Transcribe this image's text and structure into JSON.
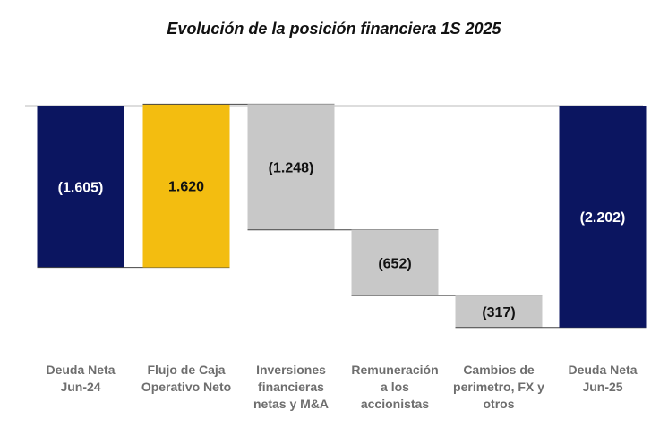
{
  "chart_data": {
    "type": "bar",
    "subtype": "waterfall",
    "title": "Evolución de la posición financiera 1S 2025",
    "categories": [
      [
        "Deuda Neta",
        "Jun-24"
      ],
      [
        "Flujo de Caja",
        "Operativo Neto"
      ],
      [
        "Inversiones",
        "financieras",
        "netas y M&A"
      ],
      [
        "Remuneración",
        "a los",
        "accionistas"
      ],
      [
        "Cambios de",
        "perimetro, FX y",
        "otros"
      ],
      [
        "Deuda Neta",
        "Jun-25"
      ]
    ],
    "values": [
      -1605,
      1620,
      -1248,
      -652,
      -317,
      -2202
    ],
    "labels": [
      "(1.605)",
      "1.620",
      "(1.248)",
      "(652)",
      "(317)",
      "(2.202)"
    ],
    "kinds": [
      "total",
      "change",
      "change",
      "change",
      "change",
      "total"
    ],
    "bar_colors": [
      "#0b1560",
      "#f3bd10",
      "#c8c8c8",
      "#c8c8c8",
      "#c8c8c8",
      "#0b1560"
    ],
    "label_colors": [
      "#ffffff",
      "#111111",
      "#111111",
      "#111111",
      "#111111",
      "#ffffff"
    ],
    "baseline_color": "#bbbbbb",
    "connector_color": "#444444",
    "xlabel": "",
    "ylabel": "",
    "grid": false,
    "legend": "none"
  }
}
